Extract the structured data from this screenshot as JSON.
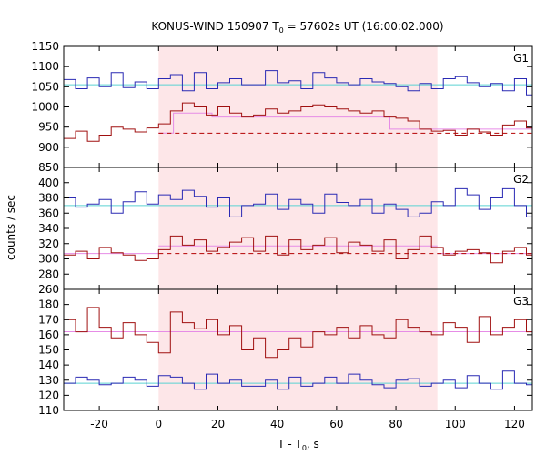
{
  "chart_data": {
    "type": "line",
    "title_main": "KONUS-WIND 150907 T",
    "title_sub": "0",
    "title_rest": " = 57602s UT (16:00:02.000)",
    "xlabel_main": "T - T",
    "xlabel_sub": "0",
    "xlabel_rest": ", s",
    "ylabel": "counts / sec",
    "xlim": [
      -32,
      126
    ],
    "x_ticks": [
      -20,
      0,
      20,
      40,
      60,
      80,
      100,
      120
    ],
    "highlight_region": [
      0,
      94
    ],
    "colors": {
      "top_curve": "#2a2ab4",
      "bottom_curve": "#a01010",
      "top_fit": "#5ad2d2",
      "bottom_fit": "#e68ce6",
      "dashed": "#b40000",
      "highlight": "#fde6e8"
    },
    "bin_edges": [
      -32,
      -28,
      -24,
      -20,
      -16,
      -12,
      -8,
      -4,
      0,
      4,
      8,
      12,
      16,
      20,
      24,
      28,
      32,
      36,
      40,
      44,
      48,
      52,
      56,
      60,
      64,
      68,
      72,
      76,
      80,
      84,
      88,
      92,
      96,
      100,
      104,
      108,
      112,
      116,
      120,
      124,
      126
    ],
    "panels": [
      {
        "label": "G1",
        "ylim": [
          850,
          1150
        ],
        "y_ticks": [
          850,
          900,
          950,
          1000,
          1050,
          1100,
          1150
        ],
        "series": [
          {
            "role": "top",
            "values": [
              1068,
              1045,
              1072,
              1050,
              1085,
              1048,
              1062,
              1045,
              1070,
              1080,
              1040,
              1085,
              1045,
              1060,
              1070,
              1055,
              1055,
              1090,
              1060,
              1065,
              1045,
              1085,
              1072,
              1060,
              1055,
              1070,
              1062,
              1058,
              1050,
              1040,
              1058,
              1045,
              1070,
              1075,
              1060,
              1050,
              1058,
              1040,
              1070,
              1030
            ]
          },
          {
            "role": "bottom",
            "values": [
              922,
              940,
              915,
              930,
              950,
              945,
              938,
              948,
              958,
              990,
              1010,
              1000,
              980,
              1000,
              985,
              975,
              980,
              995,
              985,
              990,
              1000,
              1005,
              1000,
              995,
              990,
              985,
              990,
              975,
              972,
              965,
              945,
              940,
              942,
              930,
              945,
              938,
              930,
              955,
              965,
              948
            ]
          }
        ],
        "hlines": [
          {
            "role": "top_fit",
            "y": 1055,
            "from": -32,
            "to": 126
          },
          {
            "role": "bottom_fit_step",
            "points": [
              [
                0,
                935
              ],
              [
                5,
                935
              ],
              [
                5,
                985
              ],
              [
                18,
                985
              ],
              [
                18,
                975
              ],
              [
                78,
                975
              ],
              [
                78,
                945
              ],
              [
                126,
                945
              ]
            ]
          },
          {
            "role": "dashed",
            "y": 935,
            "from": 0,
            "to": 126
          }
        ]
      },
      {
        "label": "G2",
        "ylim": [
          260,
          420
        ],
        "y_ticks": [
          260,
          280,
          300,
          320,
          340,
          360,
          380,
          400
        ],
        "series": [
          {
            "role": "top",
            "values": [
              380,
              368,
              372,
              378,
              360,
              375,
              388,
              372,
              384,
              378,
              390,
              382,
              368,
              380,
              355,
              370,
              372,
              385,
              365,
              378,
              372,
              360,
              385,
              374,
              370,
              378,
              360,
              372,
              365,
              355,
              360,
              375,
              370,
              392,
              384,
              365,
              380,
              392,
              370,
              355
            ]
          },
          {
            "role": "bottom",
            "values": [
              305,
              310,
              300,
              315,
              308,
              305,
              298,
              300,
              312,
              330,
              318,
              325,
              310,
              315,
              322,
              328,
              310,
              330,
              305,
              325,
              312,
              318,
              328,
              308,
              322,
              318,
              310,
              325,
              300,
              312,
              330,
              315,
              305,
              310,
              312,
              308,
              295,
              310,
              315,
              305
            ]
          }
        ],
        "hlines": [
          {
            "role": "top_fit",
            "y": 370,
            "from": -32,
            "to": 126
          },
          {
            "role": "bottom_fit",
            "y": 317,
            "from": 0,
            "to": 94
          },
          {
            "role": "bottom_fit",
            "y": 307,
            "from": -32,
            "to": 0
          },
          {
            "role": "bottom_fit",
            "y": 307,
            "from": 94,
            "to": 126
          },
          {
            "role": "dashed",
            "y": 307,
            "from": 0,
            "to": 126
          }
        ]
      },
      {
        "label": "G3",
        "ylim": [
          110,
          190
        ],
        "y_ticks": [
          110,
          120,
          130,
          140,
          150,
          160,
          170,
          180
        ],
        "series": [
          {
            "role": "top",
            "values": [
              128,
              132,
              130,
              127,
              128,
              132,
              130,
              126,
              133,
              132,
              128,
              124,
              134,
              128,
              130,
              126,
              126,
              130,
              124,
              132,
              126,
              128,
              132,
              128,
              134,
              130,
              127,
              125,
              130,
              131,
              126,
              128,
              130,
              125,
              133,
              128,
              124,
              136,
              128,
              127
            ]
          },
          {
            "role": "bottom",
            "values": [
              170,
              162,
              178,
              165,
              158,
              168,
              160,
              155,
              148,
              175,
              168,
              164,
              170,
              160,
              166,
              150,
              158,
              145,
              150,
              158,
              152,
              162,
              160,
              165,
              158,
              166,
              160,
              158,
              170,
              165,
              162,
              160,
              168,
              165,
              155,
              172,
              160,
              165,
              170,
              162
            ]
          }
        ],
        "hlines": [
          {
            "role": "top_fit",
            "y": 128,
            "from": -32,
            "to": 126
          },
          {
            "role": "bottom_fit",
            "y": 162,
            "from": -32,
            "to": 126
          }
        ]
      }
    ]
  }
}
